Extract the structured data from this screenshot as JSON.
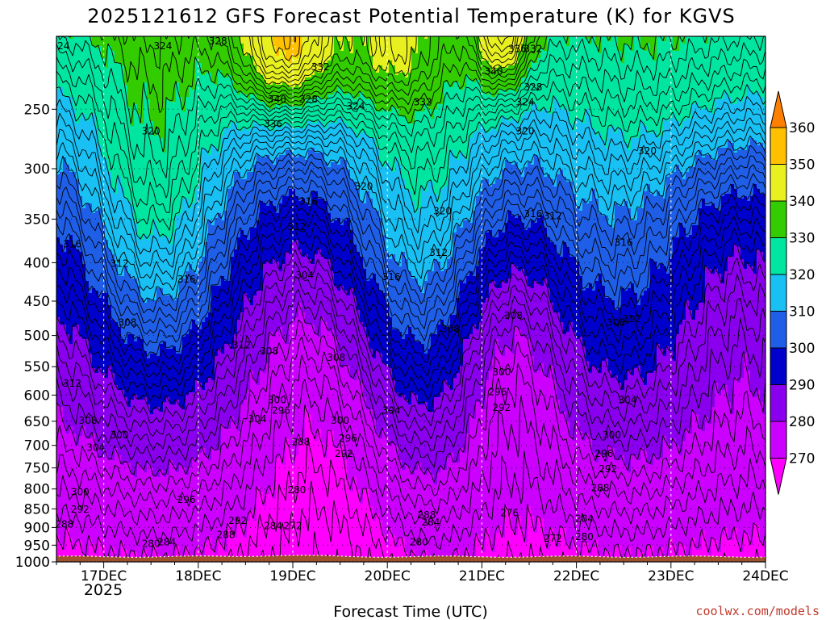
{
  "chart_data": {
    "type": "contour",
    "title": "2025121612 GFS Forecast Potential Temperature (K) for KGVS",
    "xlabel": "Forecast Time (UTC)",
    "ylabel": "",
    "x_ticks": [
      "17DEC",
      "18DEC",
      "19DEC",
      "20DEC",
      "21DEC",
      "22DEC",
      "23DEC",
      "24DEC"
    ],
    "x_year": "2025",
    "x_range_hours": [
      -12,
      168
    ],
    "y_ticks": [
      250,
      300,
      350,
      400,
      450,
      500,
      550,
      600,
      650,
      700,
      750,
      800,
      850,
      900,
      950,
      1000
    ],
    "y_range_hpa": [
      1000,
      200
    ],
    "y_scale": "log-pressure",
    "colorbar": {
      "levels": [
        270,
        280,
        290,
        300,
        310,
        320,
        330,
        340,
        350,
        360
      ],
      "colors": [
        "#ff00ff",
        "#cc00ff",
        "#8a00ee",
        "#0000cc",
        "#1f5fe8",
        "#18c0f4",
        "#00e6a0",
        "#33cc00",
        "#e8f020",
        "#ffc000",
        "#ff8000"
      ],
      "extend": "both"
    },
    "contour_interval_K": 2,
    "contour_labels": [
      {
        "hour": -11,
        "hPa": 208,
        "text": "324"
      },
      {
        "hour": 15,
        "hPa": 208,
        "text": "324"
      },
      {
        "hour": 29,
        "hPa": 205,
        "text": "328"
      },
      {
        "hour": 44,
        "hPa": 245,
        "text": "340"
      },
      {
        "hour": 43,
        "hPa": 264,
        "text": "336"
      },
      {
        "hour": 55,
        "hPa": 222,
        "text": "332"
      },
      {
        "hour": 52,
        "hPa": 245,
        "text": "328"
      },
      {
        "hour": 64,
        "hPa": 250,
        "text": "324"
      },
      {
        "hour": 81,
        "hPa": 247,
        "text": "332"
      },
      {
        "hour": 105,
        "hPa": 210,
        "text": "336"
      },
      {
        "hour": 109,
        "hPa": 210,
        "text": "332"
      },
      {
        "hour": 99,
        "hPa": 225,
        "text": "340"
      },
      {
        "hour": 109,
        "hPa": 236,
        "text": "328"
      },
      {
        "hour": 107,
        "hPa": 247,
        "text": "324"
      },
      {
        "hour": 107,
        "hPa": 270,
        "text": "320"
      },
      {
        "hour": 137,
        "hPa": 200,
        "text": "324"
      },
      {
        "hour": 138,
        "hPa": 287,
        "text": "320"
      },
      {
        "hour": 12,
        "hPa": 270,
        "text": "320"
      },
      {
        "hour": 66,
        "hPa": 320,
        "text": "320"
      },
      {
        "hour": 86,
        "hPa": 345,
        "text": "320"
      },
      {
        "hour": 52,
        "hPa": 335,
        "text": "316"
      },
      {
        "hour": 49,
        "hPa": 362,
        "text": "312"
      },
      {
        "hour": -8,
        "hPa": 382,
        "text": "316"
      },
      {
        "hour": 4,
        "hPa": 405,
        "text": "312"
      },
      {
        "hour": 21,
        "hPa": 425,
        "text": "316"
      },
      {
        "hour": 73,
        "hPa": 422,
        "text": "316"
      },
      {
        "hour": 85,
        "hPa": 392,
        "text": "312"
      },
      {
        "hour": 109,
        "hPa": 348,
        "text": "316"
      },
      {
        "hour": 114,
        "hPa": 350,
        "text": "312"
      },
      {
        "hour": 132,
        "hPa": 380,
        "text": "316"
      },
      {
        "hour": 51,
        "hPa": 420,
        "text": "304"
      },
      {
        "hour": 6,
        "hPa": 485,
        "text": "308"
      },
      {
        "hour": 35,
        "hPa": 520,
        "text": "312"
      },
      {
        "hour": 42,
        "hPa": 530,
        "text": "308"
      },
      {
        "hour": 59,
        "hPa": 540,
        "text": "308"
      },
      {
        "hour": 88,
        "hPa": 495,
        "text": "308"
      },
      {
        "hour": 104,
        "hPa": 475,
        "text": "308"
      },
      {
        "hour": 130,
        "hPa": 485,
        "text": "308"
      },
      {
        "hour": 134,
        "hPa": 480,
        "text": "312"
      },
      {
        "hour": -8,
        "hPa": 585,
        "text": "312"
      },
      {
        "hour": -4,
        "hPa": 655,
        "text": "308"
      },
      {
        "hour": -2,
        "hPa": 712,
        "text": "304"
      },
      {
        "hour": 4,
        "hPa": 685,
        "text": "300"
      },
      {
        "hour": 39,
        "hPa": 652,
        "text": "304"
      },
      {
        "hour": 44,
        "hPa": 615,
        "text": "300"
      },
      {
        "hour": 45,
        "hPa": 635,
        "text": "296"
      },
      {
        "hour": 73,
        "hPa": 635,
        "text": "304"
      },
      {
        "hour": 60,
        "hPa": 655,
        "text": "300"
      },
      {
        "hour": 62,
        "hPa": 692,
        "text": "296"
      },
      {
        "hour": 61,
        "hPa": 725,
        "text": "292"
      },
      {
        "hour": 50,
        "hPa": 700,
        "text": "288"
      },
      {
        "hour": 101,
        "hPa": 565,
        "text": "300"
      },
      {
        "hour": 100,
        "hPa": 600,
        "text": "296"
      },
      {
        "hour": 101,
        "hPa": 630,
        "text": "292"
      },
      {
        "hour": 133,
        "hPa": 615,
        "text": "304"
      },
      {
        "hour": 129,
        "hPa": 685,
        "text": "300"
      },
      {
        "hour": 127,
        "hPa": 725,
        "text": "296"
      },
      {
        "hour": 128,
        "hPa": 760,
        "text": "292"
      },
      {
        "hour": 126,
        "hPa": 805,
        "text": "288"
      },
      {
        "hour": -6,
        "hPa": 815,
        "text": "300"
      },
      {
        "hour": -6,
        "hPa": 860,
        "text": "292"
      },
      {
        "hour": -10,
        "hPa": 900,
        "text": "288"
      },
      {
        "hour": 21,
        "hPa": 835,
        "text": "296"
      },
      {
        "hour": 34,
        "hPa": 890,
        "text": "292"
      },
      {
        "hour": 31,
        "hPa": 930,
        "text": "288"
      },
      {
        "hour": 12,
        "hPa": 955,
        "text": "280"
      },
      {
        "hour": 16,
        "hPa": 950,
        "text": "284"
      },
      {
        "hour": 43,
        "hPa": 905,
        "text": "284"
      },
      {
        "hour": 48,
        "hPa": 905,
        "text": "272"
      },
      {
        "hour": 49,
        "hPa": 810,
        "text": "280"
      },
      {
        "hour": 82,
        "hPa": 875,
        "text": "288"
      },
      {
        "hour": 83,
        "hPa": 895,
        "text": "284"
      },
      {
        "hour": 80,
        "hPa": 950,
        "text": "280"
      },
      {
        "hour": 103,
        "hPa": 870,
        "text": "276"
      },
      {
        "hour": 114,
        "hPa": 940,
        "text": "272"
      },
      {
        "hour": 122,
        "hPa": 885,
        "text": "284"
      },
      {
        "hour": 122,
        "hPa": 935,
        "text": "280"
      }
    ]
  },
  "credit": "coolwx.com/models"
}
